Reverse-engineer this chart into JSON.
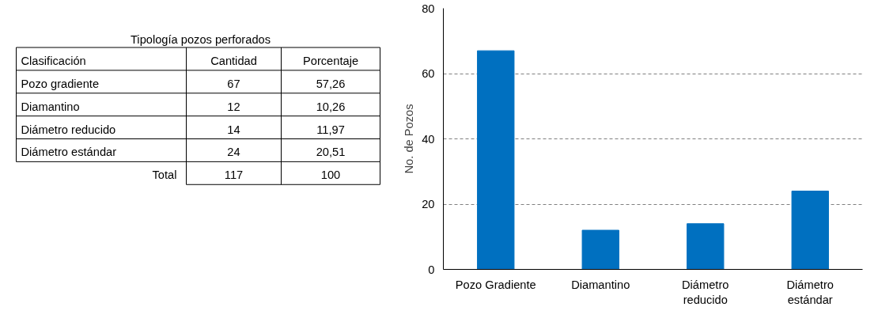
{
  "chart_data": [
    {
      "type": "other",
      "title": "Tipología pozos perforados",
      "annotations": [
        "Clasificación",
        "Cantidad",
        "Porcentaje",
        "Pozo gradiente",
        "67",
        "57,26",
        "Diamantino",
        "12",
        "10,26",
        "Diámetro reducido",
        "14",
        "11,97",
        "Diámetro estándar",
        "24",
        "20,51",
        "Total",
        "117",
        "100"
      ]
    },
    {
      "type": "bar",
      "ylabel": "No. de Pozos",
      "categories": [
        "Pozo Gradiente",
        "Diamantino",
        "Diámetro\nreducido",
        "Diámetro\nestándar"
      ],
      "values": [
        67,
        12,
        14,
        24
      ],
      "color": "#0070c0",
      "ylim": [
        0,
        80
      ],
      "yticks": [
        0,
        20,
        40,
        60,
        80
      ],
      "grid": "y"
    }
  ]
}
